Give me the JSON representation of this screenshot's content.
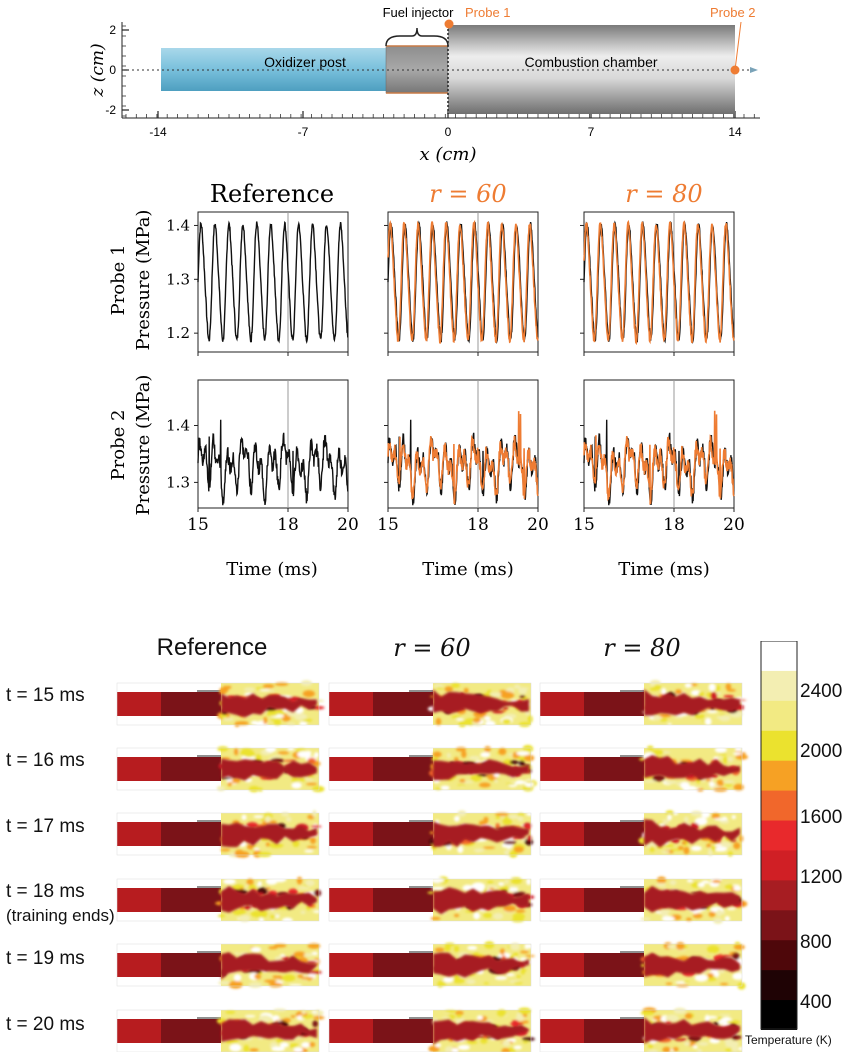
{
  "geometry": {
    "xlabel": "x (cm)",
    "zlabel": "z (cm)",
    "xticks": [
      "-14",
      "-7",
      "0",
      "7",
      "14"
    ],
    "zticks": [
      "2",
      "0",
      "-2"
    ],
    "labels": {
      "oxidizer": "Oxidizer post",
      "injector": "Fuel injector",
      "chamber": "Combustion chamber",
      "probe1": "Probe 1",
      "probe2": "Probe 2"
    },
    "colors": {
      "post": "#7fc3dc",
      "chamber": "#bdbdbd",
      "probe": "#ee7c33"
    }
  },
  "chart_data": [
    {
      "type": "line",
      "title": "Reference",
      "row_label": "Probe 1",
      "ylabel": "Pressure (MPa)",
      "xlabel": "",
      "xlim": [
        15,
        20
      ],
      "ylim": [
        1.165,
        1.425
      ],
      "yticks": [
        "1.2",
        "1.3",
        "1.4"
      ],
      "series": [
        {
          "color": "#111111",
          "period_ms": 0.465,
          "mean": 1.295,
          "amplitude": 0.105,
          "phase": 0.0
        }
      ]
    },
    {
      "type": "line",
      "title": "r = 60",
      "row_label": "Probe 1",
      "ylabel": "",
      "xlim": [
        15,
        20
      ],
      "ylim": [
        1.165,
        1.425
      ],
      "series": [
        {
          "color": "#111111",
          "period_ms": 0.465,
          "mean": 1.295,
          "amplitude": 0.105,
          "phase": 0.0
        },
        {
          "color": "#ee7c33",
          "period_ms": 0.465,
          "mean": 1.295,
          "amplitude": 0.105,
          "phase": 0.35
        }
      ]
    },
    {
      "type": "line",
      "title": "r = 80",
      "row_label": "Probe 1",
      "ylabel": "",
      "xlim": [
        15,
        20
      ],
      "ylim": [
        1.165,
        1.425
      ],
      "series": [
        {
          "color": "#111111",
          "period_ms": 0.465,
          "mean": 1.295,
          "amplitude": 0.105,
          "phase": 0.0
        },
        {
          "color": "#ee7c33",
          "period_ms": 0.465,
          "mean": 1.295,
          "amplitude": 0.105,
          "phase": 0.3
        }
      ]
    },
    {
      "type": "line",
      "title": "",
      "row_label": "Probe 2",
      "ylabel": "Pressure (MPa)",
      "xlabel": "Time (ms)",
      "xlim": [
        15,
        20
      ],
      "ylim": [
        1.255,
        1.48
      ],
      "xticks": [
        "15",
        "18",
        "20"
      ],
      "yticks": [
        "1.3",
        "1.4"
      ],
      "series": [
        {
          "color": "#111111",
          "period_ms": 0.465,
          "mean": 1.33,
          "amplitude": 0.05,
          "phase": 0.0
        }
      ]
    },
    {
      "type": "line",
      "title": "",
      "row_label": "Probe 2",
      "xlabel": "Time (ms)",
      "xlim": [
        15,
        20
      ],
      "ylim": [
        1.255,
        1.48
      ],
      "xticks": [
        "15",
        "18",
        "20"
      ],
      "series": [
        {
          "color": "#111111",
          "period_ms": 0.465,
          "mean": 1.33,
          "amplitude": 0.05,
          "phase": 0.0
        },
        {
          "color": "#ee7c33",
          "period_ms": 0.465,
          "mean": 1.33,
          "amplitude": 0.045,
          "phase": 0.2
        }
      ]
    },
    {
      "type": "line",
      "title": "",
      "row_label": "Probe 2",
      "xlabel": "Time (ms)",
      "xlim": [
        15,
        20
      ],
      "ylim": [
        1.255,
        1.48
      ],
      "xticks": [
        "15",
        "18",
        "20"
      ],
      "series": [
        {
          "color": "#111111",
          "period_ms": 0.465,
          "mean": 1.33,
          "amplitude": 0.05,
          "phase": 0.0
        },
        {
          "color": "#ee7c33",
          "period_ms": 0.465,
          "mean": 1.33,
          "amplitude": 0.045,
          "phase": 0.25
        }
      ]
    },
    {
      "type": "heatmap",
      "columns": [
        "Reference",
        "r = 60",
        "r = 80"
      ],
      "rows": [
        "t = 15 ms",
        "t = 16 ms",
        "t = 17 ms",
        "t = 18 ms",
        "t = 19 ms",
        "t = 20 ms"
      ],
      "row_note": "(training ends)",
      "colorbar": {
        "label": "Temperature (K)",
        "ticks": [
          "2400",
          "2000",
          "1600",
          "1200",
          "800",
          "400"
        ],
        "colors": [
          "#ffffff",
          "#f3eeb2",
          "#f2ea83",
          "#ebe22e",
          "#f6a124",
          "#f1672b",
          "#e8292c",
          "#d01f25",
          "#a71d22",
          "#7b1318",
          "#4e070a",
          "#1f0305",
          "#000000"
        ]
      }
    }
  ]
}
